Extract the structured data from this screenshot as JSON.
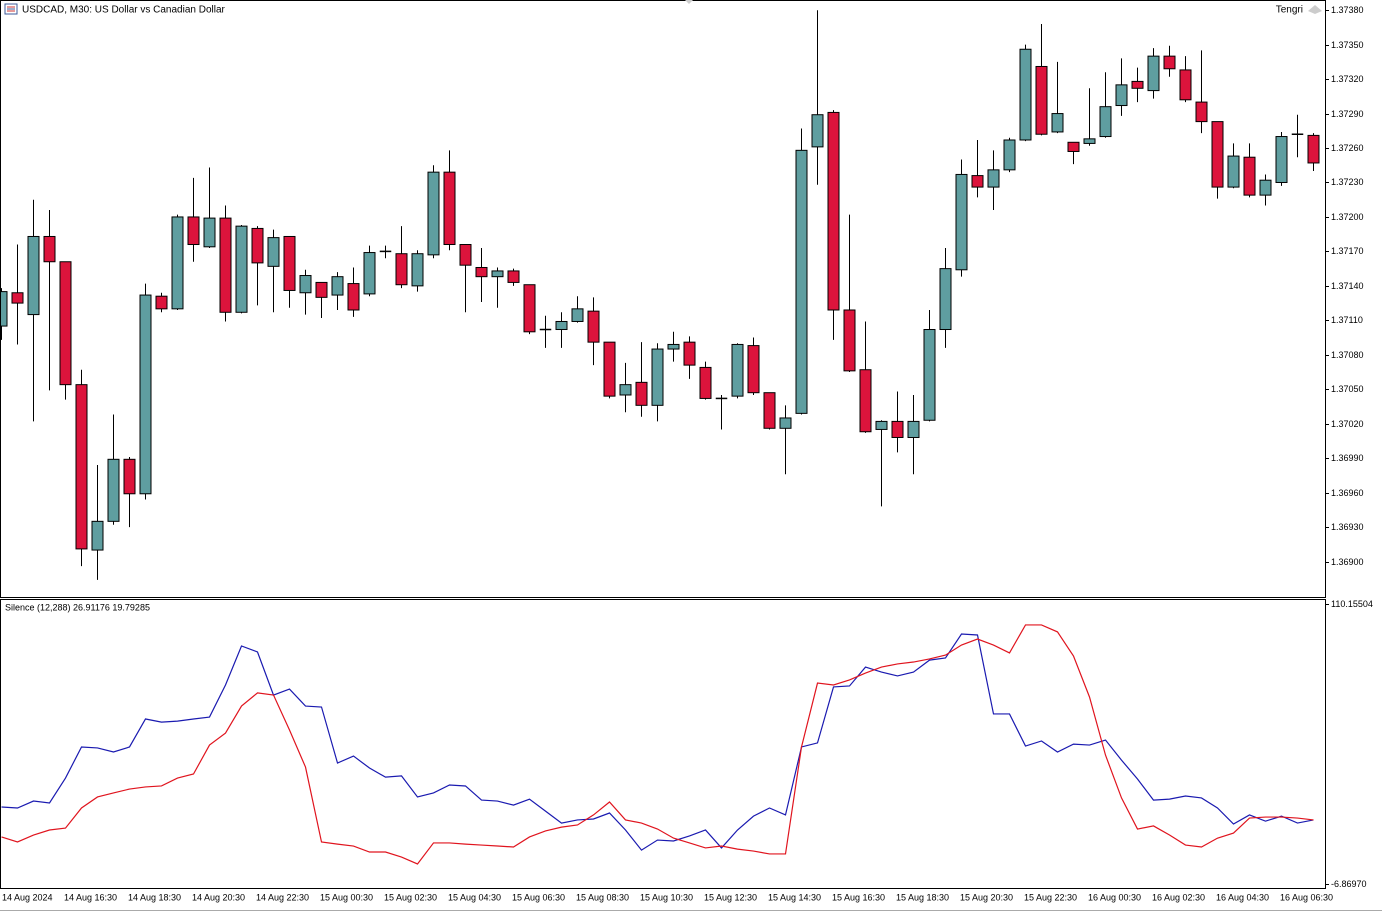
{
  "chart_data": [
    {
      "type": "candlestick",
      "title": "USDCAD, M30: US Dollar vs Canadian Dollar",
      "annotation": "Tengri",
      "up_color": "#5f9ea0",
      "down_color": "#dc143c",
      "wick_color": "#000000",
      "categories": [
        "14 Aug 2024",
        null,
        null,
        null,
        "14 Aug 16:30",
        null,
        null,
        null,
        "14 Aug 18:30",
        null,
        null,
        null,
        "14 Aug 20:30",
        null,
        null,
        null,
        "14 Aug 22:30",
        null,
        null,
        null,
        "15 Aug 00:30",
        null,
        null,
        null,
        "15 Aug 02:30",
        null,
        null,
        null,
        "15 Aug 04:30",
        null,
        null,
        null,
        "15 Aug 06:30",
        null,
        null,
        null,
        "15 Aug 08:30",
        null,
        null,
        null,
        "15 Aug 10:30",
        null,
        null,
        null,
        "15 Aug 12:30",
        null,
        null,
        null,
        "15 Aug 14:30",
        null,
        null,
        null,
        "15 Aug 16:30",
        null,
        null,
        null,
        "15 Aug 18:30",
        null,
        null,
        null,
        "15 Aug 20:30",
        null,
        null,
        null,
        "15 Aug 22:30",
        null,
        null,
        null,
        "16 Aug 00:30",
        null,
        null,
        null,
        "16 Aug 02:30",
        null,
        null,
        null,
        "16 Aug 04:30",
        null,
        null,
        null,
        "16 Aug 06:30",
        null,
        null
      ],
      "open": [
        1.37105,
        1.37134,
        1.37115,
        1.37183,
        1.37161,
        1.37054,
        1.3691,
        1.36935,
        1.36989,
        1.36959,
        1.37131,
        1.3712,
        1.372,
        1.37174,
        1.37199,
        1.37117,
        1.3719,
        1.37157,
        1.37183,
        1.37134,
        1.37143,
        1.37132,
        1.37142,
        1.37133,
        1.37169,
        1.37168,
        1.3714,
        1.37167,
        1.37239,
        1.37176,
        1.37156,
        1.37148,
        1.37153,
        1.37141,
        1.37101,
        1.37102,
        1.37109,
        1.37118,
        1.37091,
        1.37045,
        1.37056,
        1.37036,
        1.37085,
        1.37091,
        1.37069,
        1.37042,
        1.37044,
        1.37088,
        1.37047,
        1.37016,
        1.37029,
        1.37261,
        1.37291,
        1.37119,
        1.37067,
        1.37015,
        1.37022,
        1.37008,
        1.37023,
        1.37102,
        1.37154,
        1.37236,
        1.37226,
        1.37241,
        1.37267,
        1.37331,
        1.37274,
        1.37265,
        1.37264,
        1.3727,
        1.37297,
        1.37318,
        1.3731,
        1.3734,
        1.37328,
        1.373,
        1.37283,
        1.37226,
        1.37252,
        1.37219,
        1.3723,
        1.37271,
        1.37271
      ],
      "high": [
        1.37138,
        1.37176,
        1.37215,
        1.37206,
        1.37161,
        1.37067,
        1.36984,
        1.37028,
        1.36991,
        1.37142,
        1.37134,
        1.37202,
        1.37234,
        1.37243,
        1.3721,
        1.37193,
        1.37192,
        1.37189,
        1.37183,
        1.37154,
        1.37143,
        1.37152,
        1.37156,
        1.37175,
        1.37175,
        1.37192,
        1.37171,
        1.37245,
        1.37258,
        1.37176,
        1.37173,
        1.37156,
        1.37155,
        1.37141,
        1.37114,
        1.37117,
        1.37131,
        1.3713,
        1.37091,
        1.37073,
        1.37091,
        1.3709,
        1.371,
        1.37096,
        1.37074,
        1.37045,
        1.3709,
        1.37095,
        1.37047,
        1.37036,
        1.37277,
        1.3738,
        1.37293,
        1.37202,
        1.37109,
        1.37023,
        1.37048,
        1.37045,
        1.37119,
        1.37173,
        1.3725,
        1.37267,
        1.37258,
        1.37269,
        1.3735,
        1.37368,
        1.37335,
        1.37265,
        1.37312,
        1.37326,
        1.37338,
        1.3733,
        1.37347,
        1.37349,
        1.3734,
        1.37345,
        1.37283,
        1.37264,
        1.37264,
        1.37237,
        1.37274,
        1.37289,
        1.37273
      ],
      "low": [
        1.37093,
        1.37089,
        1.37022,
        1.37049,
        1.37041,
        1.36896,
        1.36884,
        1.36932,
        1.3693,
        1.36954,
        1.37117,
        1.37119,
        1.37161,
        1.37173,
        1.37109,
        1.37116,
        1.37123,
        1.37117,
        1.37121,
        1.37115,
        1.37112,
        1.37119,
        1.37113,
        1.37131,
        1.37164,
        1.37138,
        1.37135,
        1.37164,
        1.37171,
        1.37117,
        1.37126,
        1.37121,
        1.3714,
        1.37098,
        1.37086,
        1.37086,
        1.37108,
        1.37071,
        1.37042,
        1.3703,
        1.37026,
        1.37022,
        1.37074,
        1.37059,
        1.37041,
        1.37015,
        1.37042,
        1.37045,
        1.37015,
        1.36976,
        1.37028,
        1.37228,
        1.37093,
        1.37065,
        1.37012,
        1.36948,
        1.36995,
        1.36976,
        1.37022,
        1.37086,
        1.37148,
        1.37217,
        1.37206,
        1.37239,
        1.37266,
        1.37271,
        1.37273,
        1.37246,
        1.37262,
        1.37269,
        1.37288,
        1.373,
        1.37303,
        1.37322,
        1.373,
        1.37273,
        1.37216,
        1.37225,
        1.37217,
        1.3721,
        1.37227,
        1.37252,
        1.3724
      ],
      "close": [
        1.37135,
        1.37125,
        1.37183,
        1.37161,
        1.37054,
        1.36911,
        1.36935,
        1.36989,
        1.36959,
        1.37132,
        1.3712,
        1.372,
        1.37176,
        1.37199,
        1.37117,
        1.37192,
        1.3716,
        1.37182,
        1.37136,
        1.37149,
        1.3713,
        1.37148,
        1.37119,
        1.37169,
        1.3717,
        1.37141,
        1.37168,
        1.37239,
        1.37176,
        1.37158,
        1.37148,
        1.37153,
        1.37143,
        1.371,
        1.37102,
        1.37109,
        1.3712,
        1.37091,
        1.37044,
        1.37054,
        1.37036,
        1.37085,
        1.37089,
        1.37071,
        1.37042,
        1.37042,
        1.37089,
        1.37047,
        1.37016,
        1.37025,
        1.37258,
        1.37289,
        1.37119,
        1.37066,
        1.37013,
        1.37022,
        1.37008,
        1.37022,
        1.37102,
        1.37155,
        1.37237,
        1.37226,
        1.37241,
        1.37267,
        1.37346,
        1.37272,
        1.3729,
        1.37257,
        1.37268,
        1.37296,
        1.37315,
        1.37312,
        1.3734,
        1.37329,
        1.37302,
        1.37283,
        1.37226,
        1.37253,
        1.37219,
        1.37232,
        1.3727,
        1.37272,
        1.37247
      ],
      "ylim": [
        1.3687,
        1.37388
      ],
      "yticks": [
        {
          "value": 1.3738,
          "label": "1.37380"
        },
        {
          "value": 1.3735,
          "label": "1.37350"
        },
        {
          "value": 1.3732,
          "label": "1.37320"
        },
        {
          "value": 1.3729,
          "label": "1.37290"
        },
        {
          "value": 1.3726,
          "label": "1.37260"
        },
        {
          "value": 1.3723,
          "label": "1.37230"
        },
        {
          "value": 1.372,
          "label": "1.37200"
        },
        {
          "value": 1.3717,
          "label": "1.37170"
        },
        {
          "value": 1.3714,
          "label": "1.37140"
        },
        {
          "value": 1.3711,
          "label": "1.37110"
        },
        {
          "value": 1.3708,
          "label": "1.37080"
        },
        {
          "value": 1.3705,
          "label": "1.37050"
        },
        {
          "value": 1.3702,
          "label": "1.37020"
        },
        {
          "value": 1.3699,
          "label": "1.36990"
        },
        {
          "value": 1.3696,
          "label": "1.36960"
        },
        {
          "value": 1.3693,
          "label": "1.36930"
        },
        {
          "value": 1.369,
          "label": "1.36900"
        }
      ]
    },
    {
      "type": "line",
      "title": "Silence (12,288) 26.91176 19.79285",
      "series": [
        {
          "color": "#1a1ab0",
          "values": [
            25.3,
            24.9,
            27.8,
            27.0,
            37.4,
            50.4,
            50.0,
            48.3,
            50.4,
            62.1,
            60.8,
            61.2,
            62.1,
            62.9,
            76.3,
            92.6,
            90.1,
            72.1,
            74.6,
            67.5,
            67.1,
            43.7,
            46.6,
            41.6,
            37.8,
            38.3,
            29.5,
            31.2,
            34.5,
            34.1,
            28.2,
            27.8,
            26.1,
            28.6,
            23.6,
            18.6,
            19.9,
            20.3,
            22.8,
            15.7,
            7.3,
            11.5,
            11.1,
            13.2,
            15.7,
            8.2,
            15.7,
            21.5,
            24.9,
            22.0,
            50.4,
            52.1,
            75.5,
            75.9,
            83.8,
            81.7,
            80.1,
            81.7,
            86.7,
            87.6,
            97.6,
            97.2,
            64.2,
            64.2,
            50.8,
            52.9,
            48.3,
            51.6,
            51.2,
            53.3,
            44.9,
            37.0,
            28.2,
            28.6,
            29.9,
            29.1,
            24.9,
            18.2,
            22.0,
            19.4,
            21.5,
            18.6,
            19.9
          ]
        },
        {
          "color": "#e0141e",
          "values": [
            12.8,
            10.7,
            13.6,
            15.7,
            16.5,
            24.9,
            29.5,
            31.2,
            32.8,
            33.7,
            34.1,
            37.4,
            39.1,
            51.2,
            56.2,
            67.5,
            73.0,
            72.1,
            57.5,
            42.0,
            10.7,
            9.8,
            9.0,
            6.5,
            6.5,
            4.4,
            1.5,
            10.3,
            10.3,
            9.8,
            9.4,
            9.0,
            8.6,
            12.8,
            15.3,
            16.9,
            17.8,
            22.0,
            27.4,
            19.9,
            18.6,
            16.1,
            12.3,
            10.3,
            8.2,
            9.0,
            7.7,
            6.9,
            5.7,
            5.7,
            50.4,
            77.1,
            76.3,
            78.4,
            81.3,
            83.8,
            85.1,
            85.9,
            87.2,
            88.8,
            93.0,
            95.5,
            93.0,
            89.7,
            101.4,
            101.4,
            98.5,
            88.4,
            71.3,
            47.0,
            29.1,
            16.1,
            17.4,
            13.6,
            9.4,
            8.6,
            12.3,
            14.4,
            20.7,
            21.1,
            21.1,
            20.7,
            19.9
          ]
        }
      ],
      "ylim": [
        -6.8697,
        110.15504
      ],
      "yticks": [
        110.15504,
        {
          "value": -6.8697,
          "label": "-6.86970"
        }
      ]
    }
  ]
}
